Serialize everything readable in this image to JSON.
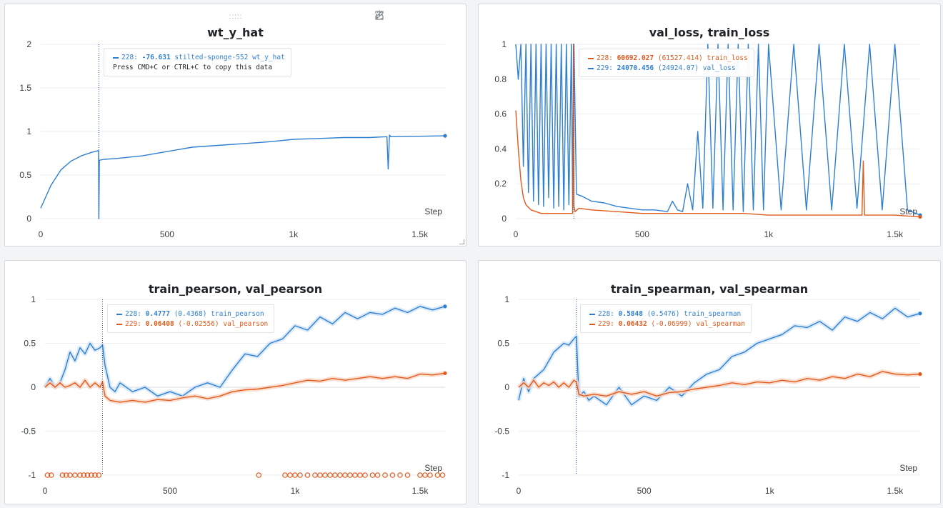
{
  "colors": {
    "blue": "#2f7fd0",
    "orange": "#e05a1c",
    "blue_light": "#cfe3f7",
    "orange_light": "#f9d5c3",
    "grid": "#eceef1"
  },
  "toolbar": {
    "icons": [
      "share-icon",
      "edit-icon",
      "fullscreen-icon",
      "more-icon"
    ]
  },
  "chart_data": [
    {
      "type": "line",
      "title": "wt_y_hat",
      "xlabel": "Step",
      "xlim": [
        0,
        1600
      ],
      "ylim": [
        0,
        2
      ],
      "x_ticks": [
        "0",
        "500",
        "1k",
        "1.5k"
      ],
      "y_ticks": [
        "0",
        "0.5",
        "1",
        "1.5",
        "2"
      ],
      "hover_step": 230,
      "series": [
        {
          "name": "wt_y_hat",
          "color": "blue",
          "x": [
            0,
            40,
            80,
            120,
            160,
            200,
            229,
            230,
            232,
            250,
            300,
            400,
            500,
            600,
            700,
            800,
            900,
            1000,
            1100,
            1200,
            1300,
            1370,
            1375,
            1380,
            1385,
            1400,
            1500,
            1600
          ],
          "y": [
            0.12,
            0.38,
            0.56,
            0.66,
            0.72,
            0.76,
            0.78,
            0.0,
            0.67,
            0.68,
            0.69,
            0.72,
            0.77,
            0.82,
            0.84,
            0.86,
            0.88,
            0.91,
            0.92,
            0.93,
            0.93,
            0.94,
            0.57,
            0.96,
            0.94,
            0.94,
            0.945,
            0.95
          ]
        }
      ],
      "tooltip": {
        "rows": [
          {
            "run": "228:",
            "value": "-76.631",
            "name": "stilted-sponge-552 wt_y_hat",
            "color": "blue"
          }
        ],
        "copy_hint": "Press CMD+C or CTRL+C to copy this data"
      }
    },
    {
      "type": "line",
      "title": "val_loss, train_loss",
      "xlabel": "Step",
      "xlim": [
        0,
        1600
      ],
      "ylim": [
        0,
        1
      ],
      "x_ticks": [
        "0",
        "500",
        "1k",
        "1.5k"
      ],
      "y_ticks": [
        "0",
        "0.2",
        "0.4",
        "0.6",
        "0.8",
        "1"
      ],
      "hover_step": 230,
      "series": [
        {
          "name": "val_loss",
          "color": "blue",
          "x": [
            0,
            10,
            20,
            30,
            40,
            50,
            60,
            70,
            80,
            90,
            100,
            110,
            120,
            130,
            140,
            150,
            160,
            170,
            180,
            190,
            200,
            210,
            220,
            225,
            230,
            240,
            260,
            300,
            350,
            400,
            450,
            500,
            550,
            600,
            620,
            640,
            660,
            680,
            700,
            720,
            740,
            760,
            780,
            800,
            820,
            840,
            860,
            880,
            900,
            920,
            940,
            960,
            980,
            1000,
            1050,
            1100,
            1150,
            1200,
            1250,
            1300,
            1350,
            1400,
            1450,
            1500,
            1550,
            1600
          ],
          "y": [
            1.0,
            0.8,
            1.0,
            0.3,
            1.0,
            0.15,
            1.0,
            0.1,
            1.0,
            0.08,
            1.0,
            0.07,
            1.0,
            0.12,
            1.0,
            0.06,
            1.0,
            0.07,
            1.0,
            0.05,
            1.0,
            0.08,
            1.0,
            0.04,
            1.0,
            0.14,
            0.13,
            0.1,
            0.09,
            0.07,
            0.06,
            0.05,
            0.05,
            0.04,
            0.1,
            0.05,
            0.04,
            0.2,
            0.05,
            0.5,
            0.06,
            1.0,
            0.06,
            1.0,
            0.05,
            1.0,
            0.05,
            1.0,
            0.04,
            1.0,
            0.05,
            1.0,
            0.05,
            1.0,
            0.05,
            1.0,
            0.05,
            1.0,
            0.05,
            1.0,
            0.06,
            1.0,
            0.05,
            1.0,
            0.05,
            0.02
          ]
        },
        {
          "name": "train_loss",
          "color": "orange",
          "x": [
            0,
            10,
            20,
            30,
            40,
            60,
            80,
            100,
            150,
            200,
            225,
            228,
            230,
            235,
            250,
            300,
            400,
            500,
            600,
            700,
            800,
            900,
            1000,
            1100,
            1200,
            1300,
            1370,
            1375,
            1380,
            1400,
            1500,
            1600
          ],
          "y": [
            0.62,
            0.4,
            0.22,
            0.12,
            0.08,
            0.05,
            0.04,
            0.03,
            0.03,
            0.03,
            0.03,
            1.0,
            0.07,
            0.04,
            0.06,
            0.05,
            0.04,
            0.03,
            0.03,
            0.03,
            0.03,
            0.03,
            0.02,
            0.02,
            0.02,
            0.02,
            0.02,
            0.33,
            0.02,
            0.02,
            0.02,
            0.01
          ]
        }
      ],
      "tooltip": {
        "rows": [
          {
            "run": "228:",
            "value": "60692.027",
            "paren": "(61527.414)",
            "name": "train_loss",
            "color": "orange"
          },
          {
            "run": "229:",
            "value": "24070.456",
            "paren": "(24924.07)",
            "name": "val_loss",
            "color": "blue"
          }
        ]
      }
    },
    {
      "type": "line",
      "title": "train_pearson, val_pearson",
      "xlabel": "Step",
      "xlim": [
        0,
        1600
      ],
      "ylim": [
        -1,
        1
      ],
      "x_ticks": [
        "0",
        "500",
        "1k",
        "1.5k"
      ],
      "y_ticks": [
        "-1",
        "-0.5",
        "0",
        "0.5",
        "1"
      ],
      "hover_step": 230,
      "series": [
        {
          "name": "train_pearson",
          "color": "blue",
          "x": [
            0,
            20,
            40,
            60,
            80,
            100,
            120,
            140,
            160,
            180,
            200,
            220,
            230,
            240,
            260,
            280,
            300,
            350,
            400,
            450,
            500,
            550,
            600,
            650,
            700,
            750,
            800,
            850,
            900,
            950,
            1000,
            1050,
            1100,
            1150,
            1200,
            1250,
            1300,
            1350,
            1400,
            1450,
            1500,
            1550,
            1600
          ],
          "y": [
            0.0,
            0.1,
            0.0,
            0.05,
            0.2,
            0.4,
            0.3,
            0.45,
            0.38,
            0.5,
            0.42,
            0.45,
            0.48,
            0.25,
            0.0,
            -0.05,
            0.05,
            -0.05,
            0.0,
            -0.1,
            -0.05,
            -0.1,
            0.0,
            0.05,
            0.0,
            0.2,
            0.38,
            0.35,
            0.5,
            0.55,
            0.7,
            0.65,
            0.8,
            0.72,
            0.85,
            0.78,
            0.85,
            0.83,
            0.9,
            0.85,
            0.92,
            0.88,
            0.92
          ]
        },
        {
          "name": "val_pearson",
          "color": "orange",
          "x": [
            0,
            20,
            40,
            60,
            80,
            100,
            120,
            140,
            160,
            180,
            200,
            220,
            230,
            240,
            260,
            300,
            350,
            400,
            450,
            500,
            550,
            600,
            650,
            700,
            750,
            800,
            850,
            900,
            950,
            1000,
            1050,
            1100,
            1150,
            1200,
            1250,
            1300,
            1350,
            1400,
            1450,
            1500,
            1550,
            1600
          ],
          "y": [
            0.0,
            0.05,
            0.0,
            0.05,
            0.0,
            0.02,
            0.05,
            0.0,
            0.08,
            0.0,
            0.05,
            0.0,
            0.06,
            -0.1,
            -0.15,
            -0.17,
            -0.15,
            -0.17,
            -0.14,
            -0.15,
            -0.12,
            -0.1,
            -0.13,
            -0.1,
            -0.05,
            -0.03,
            -0.02,
            0.0,
            0.02,
            0.05,
            0.08,
            0.07,
            0.1,
            0.08,
            0.1,
            0.12,
            0.1,
            0.12,
            0.1,
            0.15,
            0.14,
            0.16
          ]
        },
        {
          "name": "val_pearson_markers",
          "color": "orange",
          "x": [
            10,
            25,
            70,
            85,
            100,
            120,
            140,
            155,
            170,
            185,
            200,
            215,
            855,
            960,
            980,
            1000,
            1020,
            1050,
            1080,
            1100,
            1120,
            1140,
            1160,
            1180,
            1200,
            1220,
            1240,
            1260,
            1280,
            1310,
            1330,
            1360,
            1390,
            1420,
            1450,
            1500,
            1520,
            1540,
            1570,
            1590
          ],
          "y": [
            -1,
            -1,
            -1,
            -1,
            -1,
            -1,
            -1,
            -1,
            -1,
            -1,
            -1,
            -1,
            -1,
            -1,
            -1,
            -1,
            -1,
            -1,
            -1,
            -1,
            -1,
            -1,
            -1,
            -1,
            -1,
            -1,
            -1,
            -1,
            -1,
            -1,
            -1,
            -1,
            -1,
            -1,
            -1,
            -1,
            -1,
            -1,
            -1,
            -1
          ]
        }
      ],
      "tooltip": {
        "rows": [
          {
            "run": "228:",
            "value": "0.4777",
            "paren": "(0.4368)",
            "name": "train_pearson",
            "color": "blue"
          },
          {
            "run": "229:",
            "value": "0.06408",
            "paren": "(-0.02556)",
            "name": "val_pearson",
            "color": "orange"
          }
        ]
      }
    },
    {
      "type": "line",
      "title": "train_spearman, val_spearman",
      "xlabel": "Step",
      "xlim": [
        0,
        1600
      ],
      "ylim": [
        -1,
        1
      ],
      "x_ticks": [
        "0",
        "500",
        "1k",
        "1.5k"
      ],
      "y_ticks": [
        "-1",
        "-0.5",
        "0",
        "0.5",
        "1"
      ],
      "hover_step": 230,
      "series": [
        {
          "name": "train_spearman",
          "color": "blue",
          "x": [
            0,
            20,
            40,
            60,
            80,
            100,
            120,
            140,
            160,
            180,
            200,
            220,
            230,
            240,
            260,
            280,
            300,
            350,
            400,
            450,
            500,
            550,
            600,
            650,
            700,
            750,
            800,
            850,
            900,
            950,
            1000,
            1050,
            1100,
            1150,
            1200,
            1250,
            1300,
            1350,
            1400,
            1450,
            1500,
            1550,
            1600
          ],
          "y": [
            -0.15,
            0.1,
            -0.05,
            0.1,
            0.15,
            0.2,
            0.3,
            0.4,
            0.45,
            0.5,
            0.48,
            0.55,
            0.58,
            -0.1,
            -0.05,
            -0.15,
            -0.1,
            -0.2,
            0.0,
            -0.2,
            -0.1,
            -0.15,
            0.0,
            -0.1,
            0.05,
            0.15,
            0.2,
            0.35,
            0.4,
            0.5,
            0.55,
            0.6,
            0.7,
            0.68,
            0.75,
            0.65,
            0.8,
            0.75,
            0.85,
            0.78,
            0.9,
            0.8,
            0.84
          ]
        },
        {
          "name": "val_spearman",
          "color": "orange",
          "x": [
            0,
            20,
            40,
            60,
            80,
            100,
            120,
            140,
            160,
            180,
            200,
            220,
            230,
            240,
            260,
            300,
            350,
            400,
            450,
            500,
            550,
            600,
            650,
            700,
            750,
            800,
            850,
            900,
            950,
            1000,
            1050,
            1100,
            1150,
            1200,
            1250,
            1300,
            1350,
            1400,
            1450,
            1500,
            1550,
            1600
          ],
          "y": [
            0.0,
            0.05,
            0.0,
            0.08,
            0.0,
            0.05,
            0.02,
            0.06,
            0.0,
            0.05,
            0.0,
            0.08,
            0.06,
            -0.08,
            -0.1,
            -0.08,
            -0.1,
            -0.05,
            -0.08,
            -0.05,
            -0.1,
            -0.06,
            -0.05,
            -0.02,
            0.0,
            0.02,
            0.05,
            0.03,
            0.06,
            0.05,
            0.08,
            0.06,
            0.1,
            0.08,
            0.12,
            0.1,
            0.15,
            0.12,
            0.18,
            0.15,
            0.14,
            0.15
          ]
        }
      ],
      "tooltip": {
        "rows": [
          {
            "run": "228:",
            "value": "0.5848",
            "paren": "(0.5476)",
            "name": "train_spearman",
            "color": "blue"
          },
          {
            "run": "229:",
            "value": "0.06432",
            "paren": "(-0.06999)",
            "name": "val_spearman",
            "color": "orange"
          }
        ]
      }
    }
  ]
}
